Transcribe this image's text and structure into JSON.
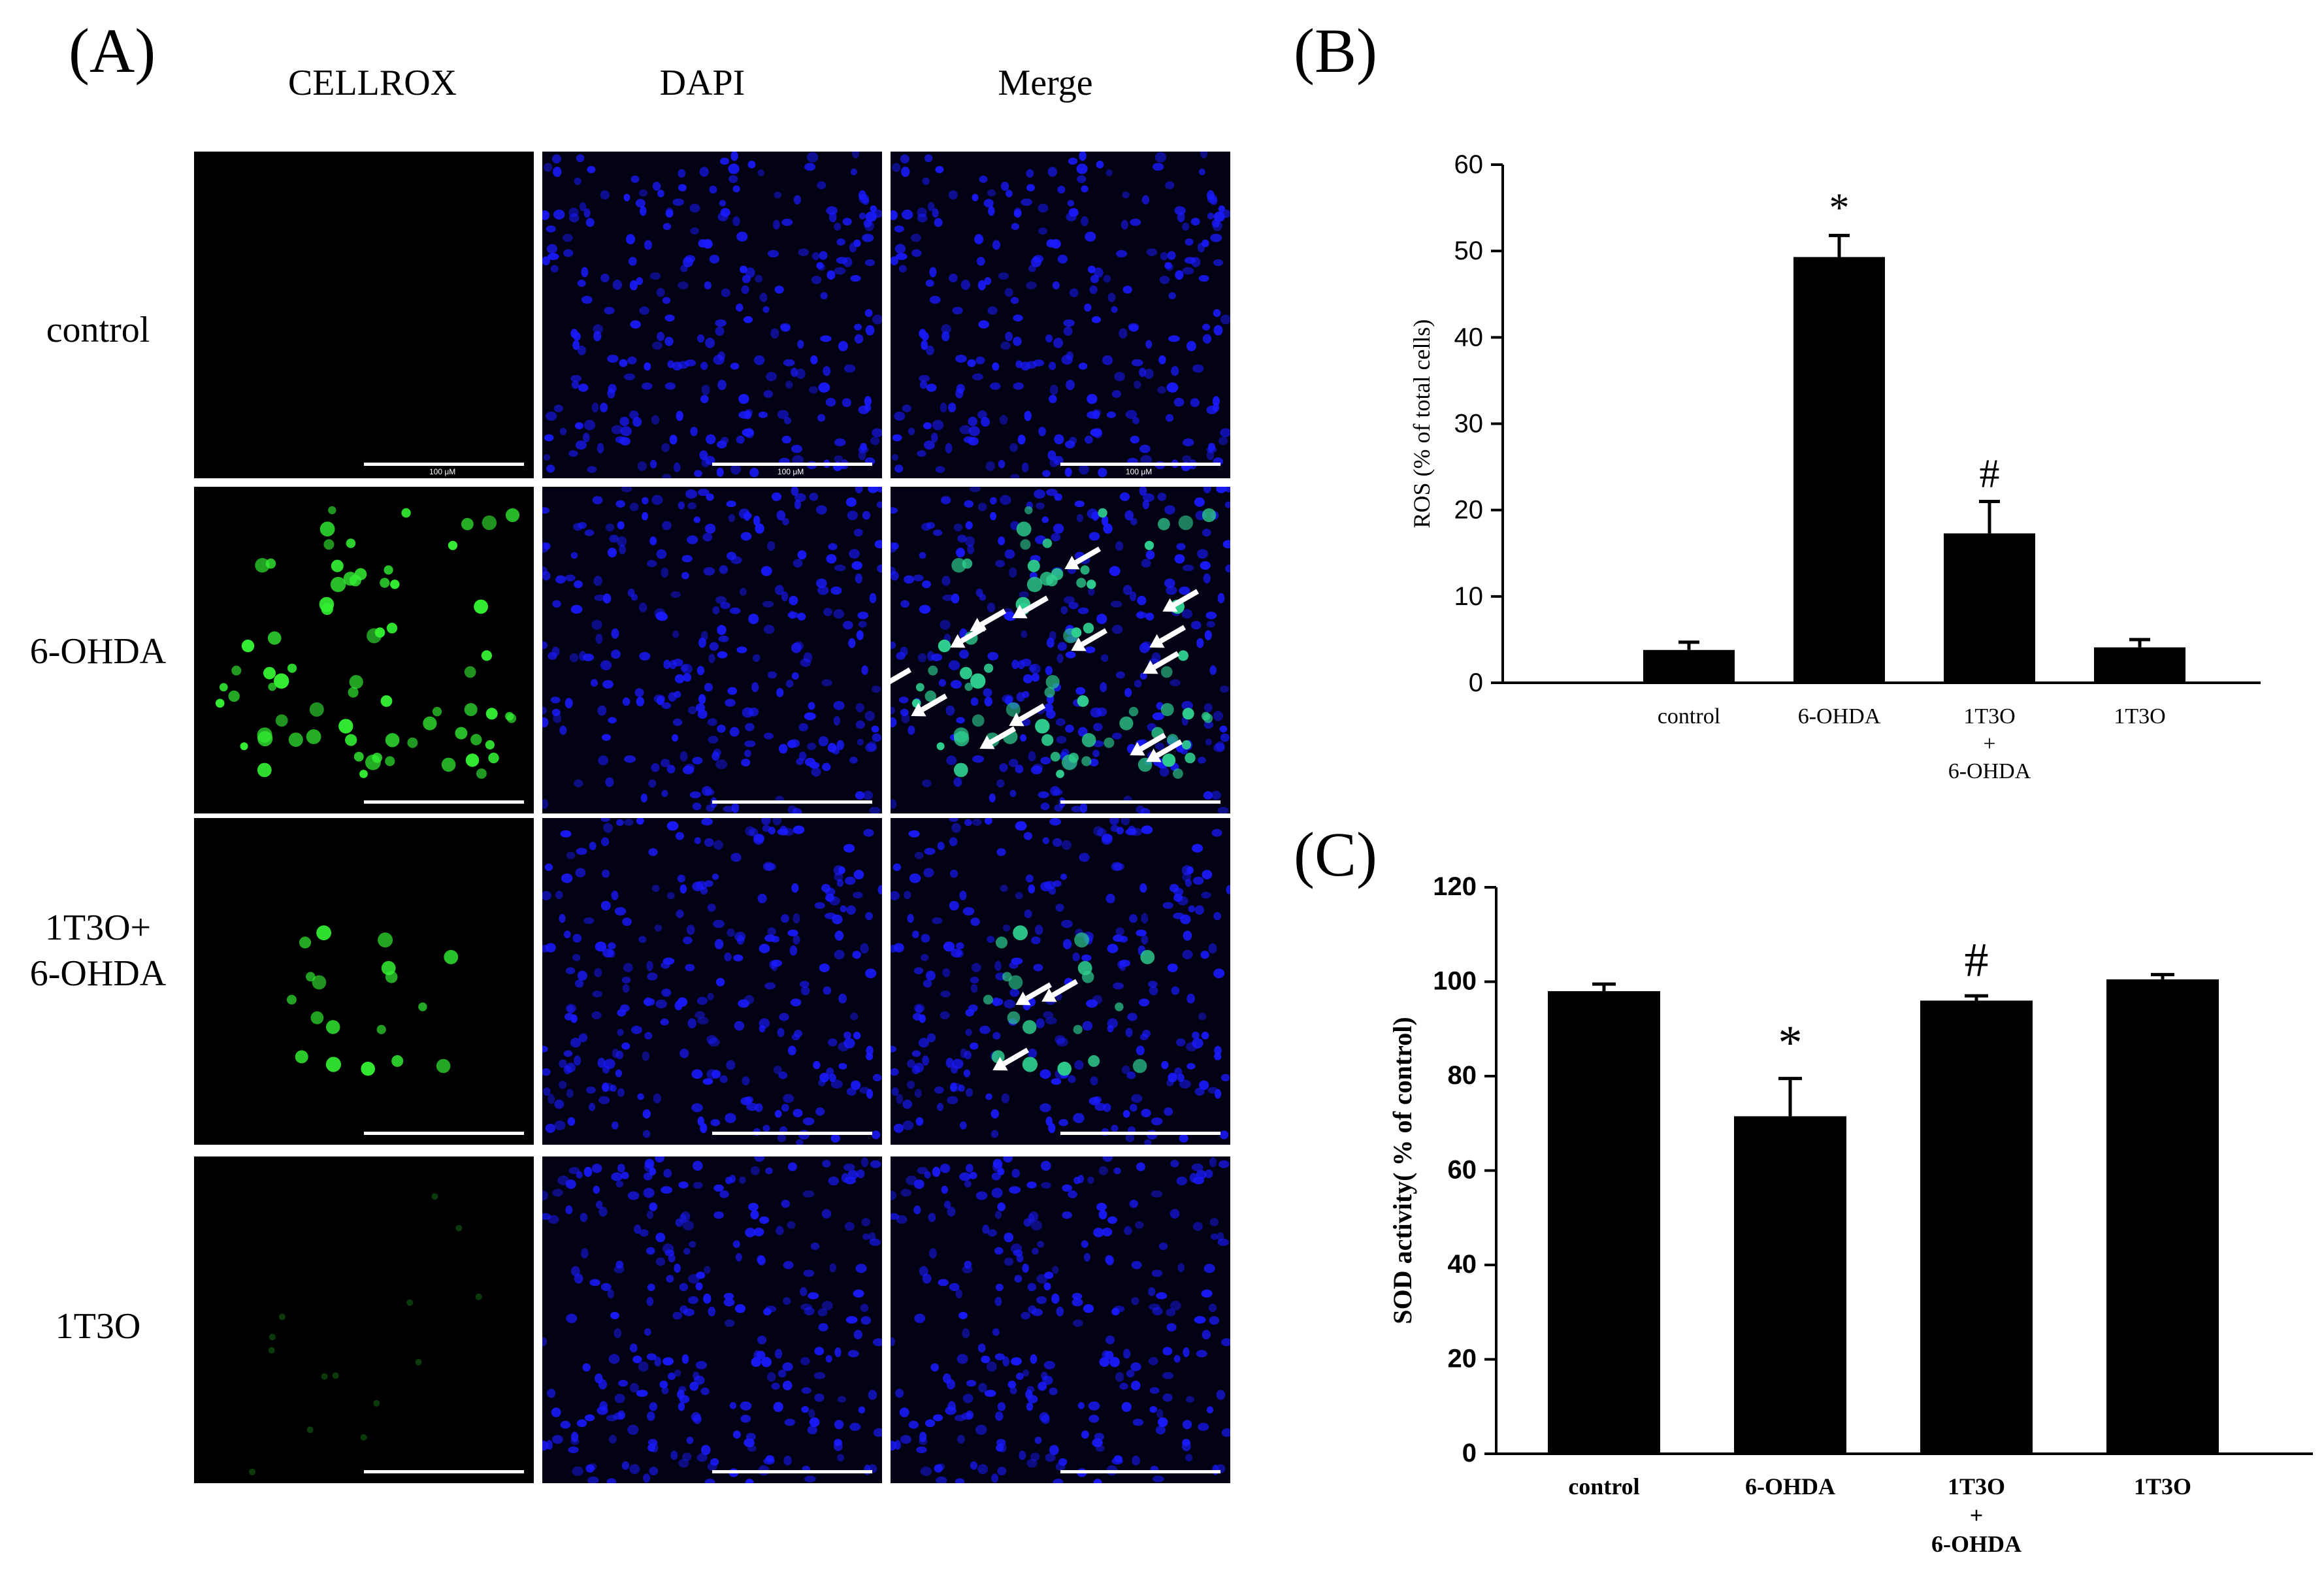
{
  "panel_a": {
    "letter": "(A)",
    "columns": [
      "CELLROX",
      "DAPI",
      "Merge"
    ],
    "rows": [
      {
        "label_lines": [
          "control"
        ],
        "scale_text": "100 μM"
      },
      {
        "label_lines": [
          "6-OHDA"
        ],
        "scale_text": ""
      },
      {
        "label_lines": [
          "1T3O+",
          "6-OHDA"
        ],
        "scale_text": ""
      },
      {
        "label_lines": [
          "1T3O"
        ],
        "scale_text": ""
      }
    ],
    "colors": {
      "nuclei": "#1a1aff",
      "ros": "#33ee33",
      "arrow": "#ffffff"
    }
  },
  "chart_data": [
    {
      "type": "bar",
      "panel_letter": "(B)",
      "categories": [
        [
          "control"
        ],
        [
          "6-OHDA"
        ],
        [
          "1T3O",
          "+",
          "6-OHDA"
        ],
        [
          "1T3O"
        ]
      ],
      "values": [
        3.8,
        49.3,
        17.3,
        4.1
      ],
      "errors": [
        0.9,
        2.5,
        3.7,
        0.9
      ],
      "annotations": [
        "",
        "*",
        "#",
        ""
      ],
      "ylabel": "ROS (% of total cells)",
      "ylim": [
        0,
        60
      ],
      "yticks": [
        0,
        10,
        20,
        30,
        40,
        50,
        60
      ],
      "bar_color": "#000000",
      "bold_labels": false
    },
    {
      "type": "bar",
      "panel_letter": "(C)",
      "categories": [
        [
          "control"
        ],
        [
          "6-OHDA"
        ],
        [
          "1T3O",
          "+",
          "6-OHDA"
        ],
        [
          "1T3O"
        ]
      ],
      "values": [
        98,
        71.5,
        96,
        100.5
      ],
      "errors": [
        1.5,
        8,
        1,
        1
      ],
      "annotations": [
        "",
        "*",
        "#",
        ""
      ],
      "ylabel": "SOD activity( % of control)",
      "ylim": [
        0,
        120
      ],
      "yticks": [
        0,
        20,
        40,
        60,
        80,
        100,
        120
      ],
      "bar_color": "#000000",
      "bold_labels": true
    }
  ]
}
